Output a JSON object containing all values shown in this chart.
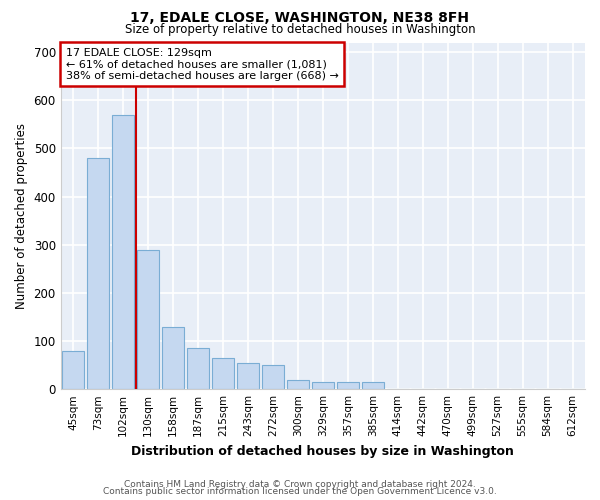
{
  "title1": "17, EDALE CLOSE, WASHINGTON, NE38 8FH",
  "title2": "Size of property relative to detached houses in Washington",
  "xlabel": "Distribution of detached houses by size in Washington",
  "ylabel": "Number of detached properties",
  "categories": [
    "45sqm",
    "73sqm",
    "102sqm",
    "130sqm",
    "158sqm",
    "187sqm",
    "215sqm",
    "243sqm",
    "272sqm",
    "300sqm",
    "329sqm",
    "357sqm",
    "385sqm",
    "414sqm",
    "442sqm",
    "470sqm",
    "499sqm",
    "527sqm",
    "555sqm",
    "584sqm",
    "612sqm"
  ],
  "values": [
    80,
    480,
    570,
    290,
    130,
    85,
    65,
    55,
    50,
    20,
    15,
    15,
    15,
    0,
    0,
    0,
    0,
    0,
    0,
    0,
    0
  ],
  "bar_color": "#c5d8f0",
  "bar_edge_color": "#7aadd4",
  "background_color": "#e8eef7",
  "grid_color": "#ffffff",
  "marker_line_color": "#cc0000",
  "annotation_line1": "17 EDALE CLOSE: 129sqm",
  "annotation_line2": "← 61% of detached houses are smaller (1,081)",
  "annotation_line3": "38% of semi-detached houses are larger (668) →",
  "annotation_box_color": "#ffffff",
  "annotation_box_edge": "#cc0000",
  "ylim": [
    0,
    720
  ],
  "yticks": [
    0,
    100,
    200,
    300,
    400,
    500,
    600,
    700
  ],
  "footer1": "Contains HM Land Registry data © Crown copyright and database right 2024.",
  "footer2": "Contains public sector information licensed under the Open Government Licence v3.0."
}
